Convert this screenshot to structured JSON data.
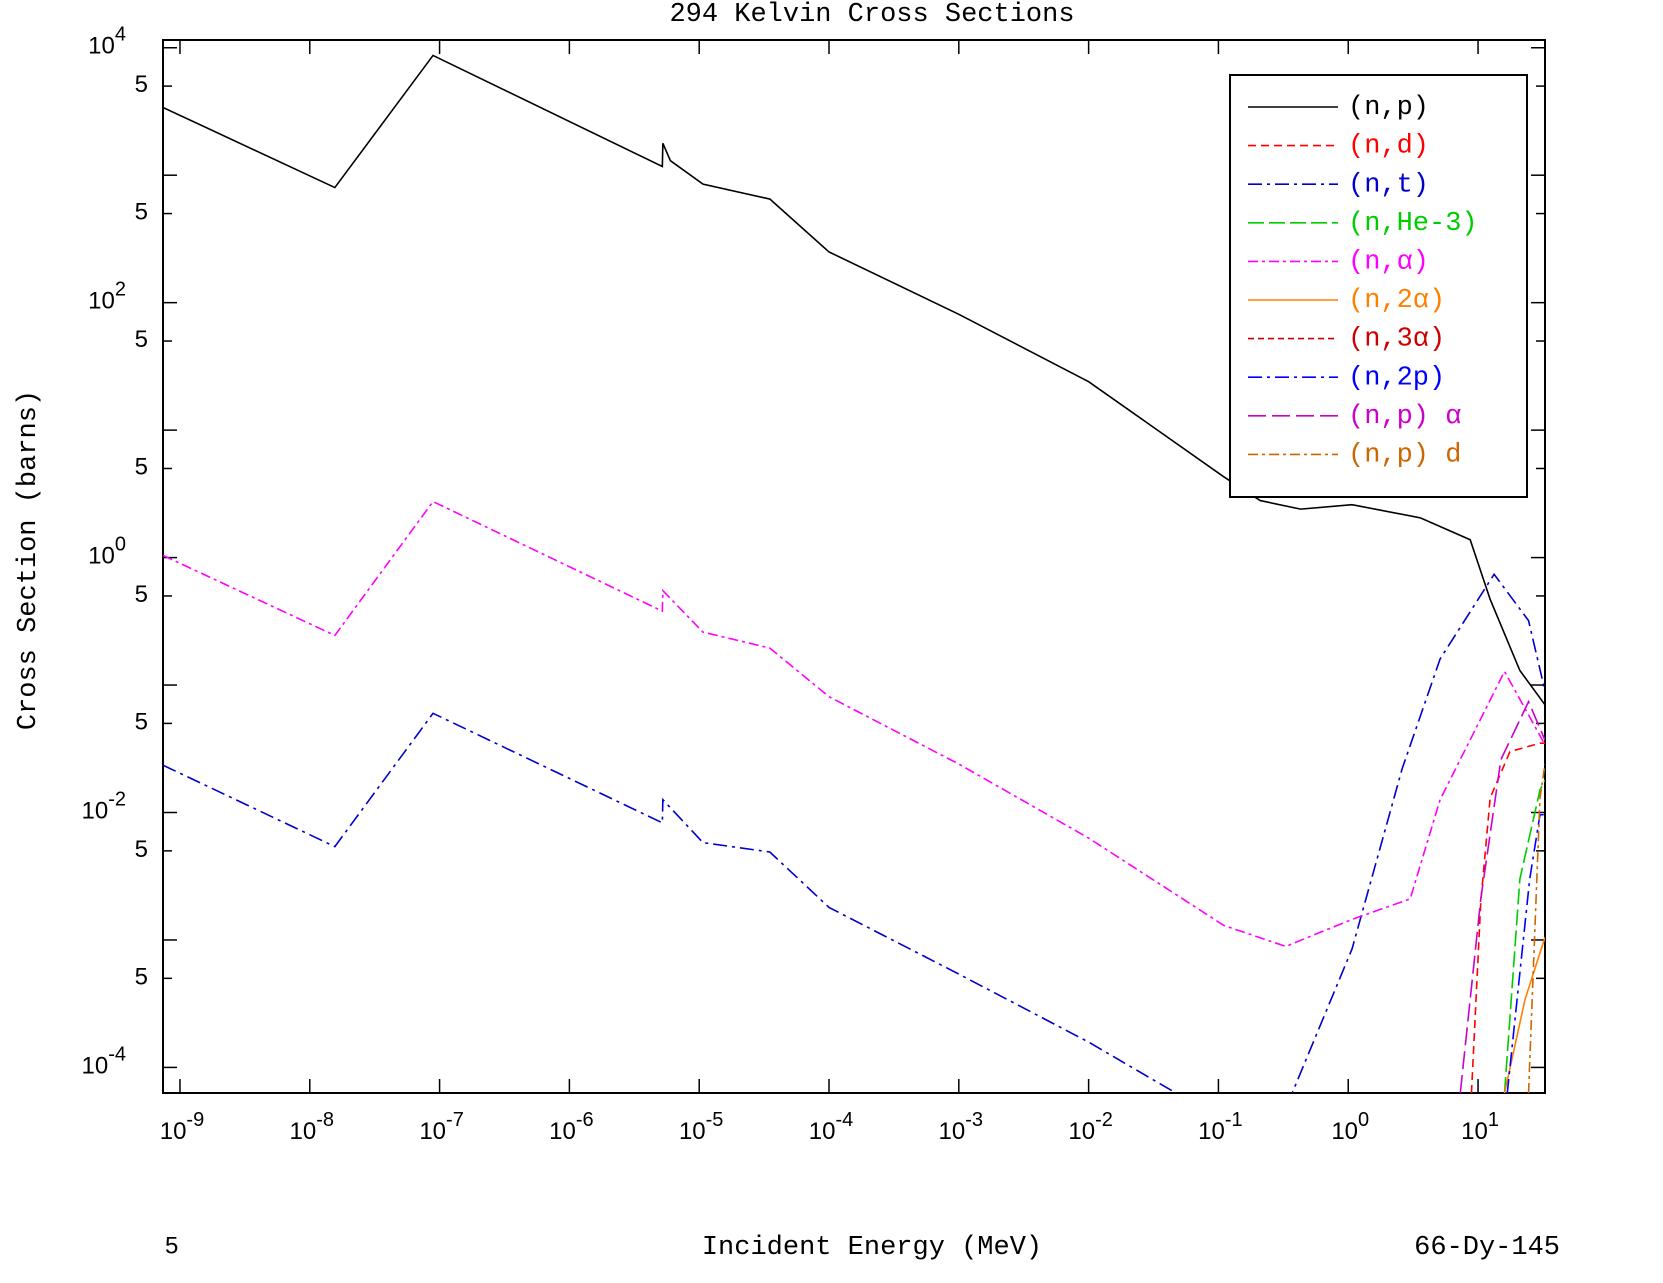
{
  "chart_data": {
    "type": "line",
    "title": "294 Kelvin Cross Sections",
    "x_label": "Incident Energy (MeV)",
    "y_label": "Cross Section (barns)",
    "corner_left": "5",
    "corner_right": "66-Dy-145",
    "xlog": true,
    "ylog": true,
    "xlim": [
      7.4e-10,
      32.8
    ],
    "ylim": [
      6.3e-05,
      11500
    ],
    "xticks": [
      {
        "value": 1e-09,
        "label": "10",
        "exponent": "-9"
      },
      {
        "value": 1e-08,
        "label": "10",
        "exponent": "-8"
      },
      {
        "value": 1e-07,
        "label": "10",
        "exponent": "-7"
      },
      {
        "value": 1e-06,
        "label": "10",
        "exponent": "-6"
      },
      {
        "value": 1e-05,
        "label": "10",
        "exponent": "-5"
      },
      {
        "value": 0.0001,
        "label": "10",
        "exponent": "-4"
      },
      {
        "value": 0.001,
        "label": "10",
        "exponent": "-3"
      },
      {
        "value": 0.01,
        "label": "10",
        "exponent": "-2"
      },
      {
        "value": 0.1,
        "label": "10",
        "exponent": "-1"
      },
      {
        "value": 1,
        "label": "10",
        "exponent": "0"
      },
      {
        "value": 10,
        "label": "10",
        "exponent": "1"
      }
    ],
    "yticks": [
      {
        "value": 10000,
        "label": "10",
        "exponent": "4"
      },
      {
        "value": 5000,
        "label": "5"
      },
      {
        "value": 500,
        "label": "5"
      },
      {
        "value": 100,
        "label": "10",
        "exponent": "2"
      },
      {
        "value": 50,
        "label": "5"
      },
      {
        "value": 5,
        "label": "5"
      },
      {
        "value": 1,
        "label": "10",
        "exponent": "0"
      },
      {
        "value": 0.5,
        "label": "5"
      },
      {
        "value": 0.05,
        "label": "5"
      },
      {
        "value": 0.01,
        "label": "10",
        "exponent": "-2"
      },
      {
        "value": 0.005,
        "label": "5"
      },
      {
        "value": 0.0005,
        "label": "5"
      },
      {
        "value": 0.0001,
        "label": "10",
        "exponent": "-4"
      }
    ],
    "yticks_unlabeled": [
      1000,
      10,
      0.1,
      0.001
    ],
    "legend": "upper right",
    "series": [
      {
        "name": "(n,p)",
        "color": "#000000",
        "dash": "none",
        "x": [
          7.4e-10,
          1.56e-08,
          8.9e-08,
          5.2e-06,
          5.25e-06,
          6e-06,
          1.07e-05,
          3.5e-05,
          0.0001,
          0.001,
          0.01,
          0.11,
          0.21,
          0.43,
          1.07,
          3.6,
          8.7,
          12.4,
          21,
          32.8
        ],
        "values": [
          3400,
          800,
          8700,
          1170,
          1780,
          1300,
          850,
          650,
          250,
          81,
          24,
          4.3,
          2.8,
          2.4,
          2.6,
          2.05,
          1.38,
          0.47,
          0.13,
          0.07
        ]
      },
      {
        "name": "(n,d)",
        "color": "#ff0000",
        "dash": "8,5",
        "x": [
          8.9,
          10.5,
          12.4,
          17.6,
          30,
          32.8
        ],
        "values": [
          6.3e-05,
          0.002,
          0.013,
          0.03,
          0.035,
          0.035
        ]
      },
      {
        "name": "(n,t)",
        "color": "#0000cc",
        "dash": "14,5,3,5",
        "x": [
          7.4e-10,
          1.56e-08,
          8.9e-08,
          5.2e-06,
          5.25e-06,
          1.07e-05,
          3.5e-05,
          0.0001,
          0.001,
          0.01,
          0.047,
          0.2,
          0.37,
          1.07,
          2.6,
          5.1,
          13.3,
          24.5,
          32.8
        ],
        "values": [
          0.0235,
          0.0054,
          0.06,
          0.0083,
          0.0126,
          0.0058,
          0.0049,
          0.0018,
          0.00054,
          0.000158,
          6.3e-05,
          4e-05,
          6.3e-05,
          0.00085,
          0.022,
          0.16,
          0.74,
          0.32,
          0.09
        ]
      },
      {
        "name": "(n,He-3)",
        "color": "#00cc00",
        "dash": "16,5",
        "x": [
          16,
          21,
          30,
          32.8
        ],
        "values": [
          6.3e-05,
          0.003,
          0.015,
          0.018
        ]
      },
      {
        "name": "(n,α)",
        "color": "#ff00ff",
        "dash": "10,4,3,4",
        "x": [
          7.4e-10,
          1.56e-08,
          8.9e-08,
          5.2e-06,
          5.25e-06,
          1.07e-05,
          3.5e-05,
          0.0001,
          0.001,
          0.01,
          0.11,
          0.33,
          1.07,
          3.0,
          5.1,
          16,
          32.8
        ],
        "values": [
          1.04,
          0.245,
          2.75,
          0.38,
          0.55,
          0.26,
          0.195,
          0.081,
          0.024,
          0.0063,
          0.0013,
          0.00089,
          0.00145,
          0.0021,
          0.0126,
          0.128,
          0.034
        ]
      },
      {
        "name": "(n,2α)",
        "color": "#ff8000",
        "dash": "none",
        "x": [
          16,
          23,
          32.8
        ],
        "values": [
          6.3e-05,
          0.00034,
          0.00105
        ]
      },
      {
        "name": "(n,3α)",
        "color": "#cc0000",
        "dash": "6,4",
        "x": [
          30,
          32.8
        ],
        "values": [
          3e-05,
          5e-05
        ]
      },
      {
        "name": "(n,2p)",
        "color": "#0000ff",
        "dash": "14,5,3,5",
        "x": [
          16.8,
          25,
          30,
          32.8
        ],
        "values": [
          6.3e-05,
          0.003,
          0.0096,
          0.0096
        ]
      },
      {
        "name": "(n,p) α",
        "color": "#cc00cc",
        "dash": "18,6",
        "x": [
          7.3,
          10.5,
          15,
          24.5,
          32.8
        ],
        "values": [
          6.3e-05,
          0.0021,
          0.026,
          0.074,
          0.037
        ]
      },
      {
        "name": "(n,p) d",
        "color": "#cc6600",
        "dash": "10,4,3,4",
        "x": [
          24.5,
          30,
          32.8
        ],
        "values": [
          6.3e-05,
          0.013,
          0.024
        ]
      }
    ]
  }
}
